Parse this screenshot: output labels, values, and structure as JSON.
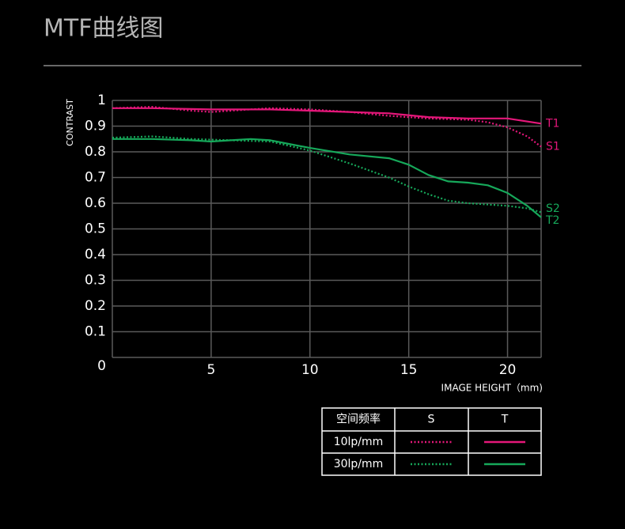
{
  "chart_data": {
    "type": "line",
    "title": "MTF曲线图",
    "y_label": "CONTRAST",
    "x_label": "IMAGE HEIGHT（mm)",
    "xlim": [
      0,
      21.7
    ],
    "xticks": [
      5,
      10,
      15,
      20
    ],
    "ylim": [
      0,
      1
    ],
    "yticks": [
      0,
      0.1,
      0.2,
      0.3,
      0.4,
      0.5,
      0.6,
      0.7,
      0.8,
      0.9,
      1
    ],
    "grid": true,
    "series": [
      {
        "name": "T1",
        "color": "#e5177a",
        "dash": "solid",
        "x": [
          0,
          2,
          5,
          8,
          10,
          12,
          14,
          16,
          18,
          20,
          21.7
        ],
        "values": [
          0.97,
          0.97,
          0.965,
          0.965,
          0.96,
          0.955,
          0.95,
          0.935,
          0.93,
          0.93,
          0.91
        ]
      },
      {
        "name": "S1",
        "color": "#e5177a",
        "dash": "dotted",
        "x": [
          0,
          2,
          4,
          5,
          6,
          8,
          10,
          12,
          14,
          16,
          18,
          19,
          20,
          21,
          21.7
        ],
        "values": [
          0.97,
          0.975,
          0.96,
          0.955,
          0.96,
          0.97,
          0.965,
          0.955,
          0.94,
          0.93,
          0.925,
          0.915,
          0.895,
          0.86,
          0.82
        ]
      },
      {
        "name": "S2",
        "color": "#16a85a",
        "dash": "dotted",
        "x": [
          0,
          2,
          4,
          6,
          8,
          10,
          12,
          14,
          15,
          16,
          17,
          18,
          20,
          21,
          21.7
        ],
        "values": [
          0.855,
          0.86,
          0.85,
          0.845,
          0.84,
          0.805,
          0.755,
          0.7,
          0.665,
          0.635,
          0.61,
          0.6,
          0.59,
          0.58,
          0.565
        ]
      },
      {
        "name": "T2",
        "color": "#16a85a",
        "dash": "solid",
        "x": [
          0,
          2,
          4,
          5,
          6,
          7,
          8,
          10,
          12,
          14,
          15,
          16,
          17,
          18,
          19,
          20,
          21,
          21.7
        ],
        "values": [
          0.85,
          0.85,
          0.845,
          0.84,
          0.845,
          0.85,
          0.845,
          0.815,
          0.79,
          0.775,
          0.75,
          0.71,
          0.685,
          0.68,
          0.67,
          0.64,
          0.59,
          0.545
        ]
      }
    ]
  },
  "legend_table": {
    "header": [
      "空间频率",
      "S",
      "T"
    ],
    "rows": [
      {
        "label": "10lp/mm",
        "s_series": 1,
        "t_series": 0
      },
      {
        "label": "30lp/mm",
        "s_series": 2,
        "t_series": 3
      }
    ]
  }
}
